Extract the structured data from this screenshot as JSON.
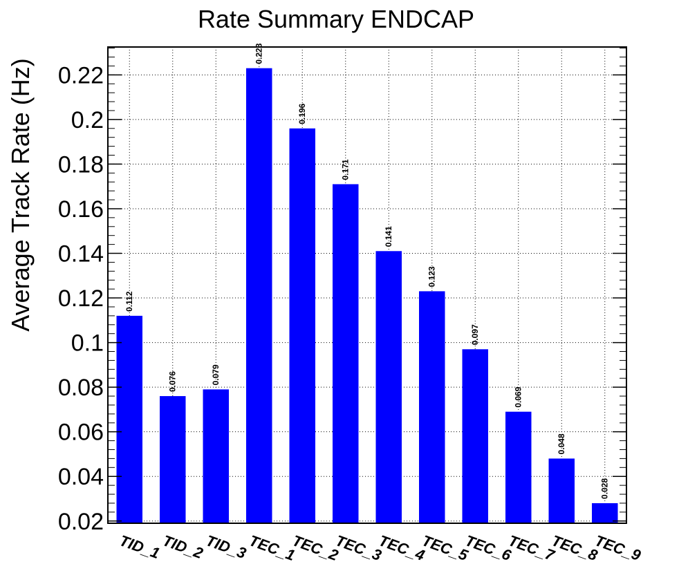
{
  "chart_data": {
    "type": "bar",
    "title": "Rate Summary ENDCAP",
    "xlabel": "",
    "ylabel": "Average Track Rate (Hz)",
    "categories": [
      "TID_1",
      "TID_2",
      "TID_3",
      "TEC_1",
      "TEC_2",
      "TEC_3",
      "TEC_4",
      "TEC_5",
      "TEC_6",
      "TEC_7",
      "TEC_8",
      "TEC_9"
    ],
    "values": [
      0.112,
      0.076,
      0.079,
      0.223,
      0.196,
      0.171,
      0.141,
      0.123,
      0.097,
      0.069,
      0.048,
      0.028
    ],
    "value_labels": [
      "0.112",
      "0.076",
      "0.079",
      "0.223",
      "0.196",
      "0.171",
      "0.141",
      "0.123",
      "0.097",
      "0.069",
      "0.048",
      "0.028"
    ],
    "ylim": [
      0.019,
      0.2325
    ],
    "yticks": [
      0.02,
      0.04,
      0.06,
      0.08,
      0.1,
      0.12,
      0.14,
      0.16,
      0.18,
      0.2,
      0.22
    ],
    "ytick_labels": [
      "0.02",
      "0.04",
      "0.06",
      "0.08",
      "0.1",
      "0.12",
      "0.14",
      "0.16",
      "0.18",
      "0.2",
      "0.22"
    ],
    "grid": true,
    "legend": "none",
    "bar_color": "#0000ff"
  }
}
